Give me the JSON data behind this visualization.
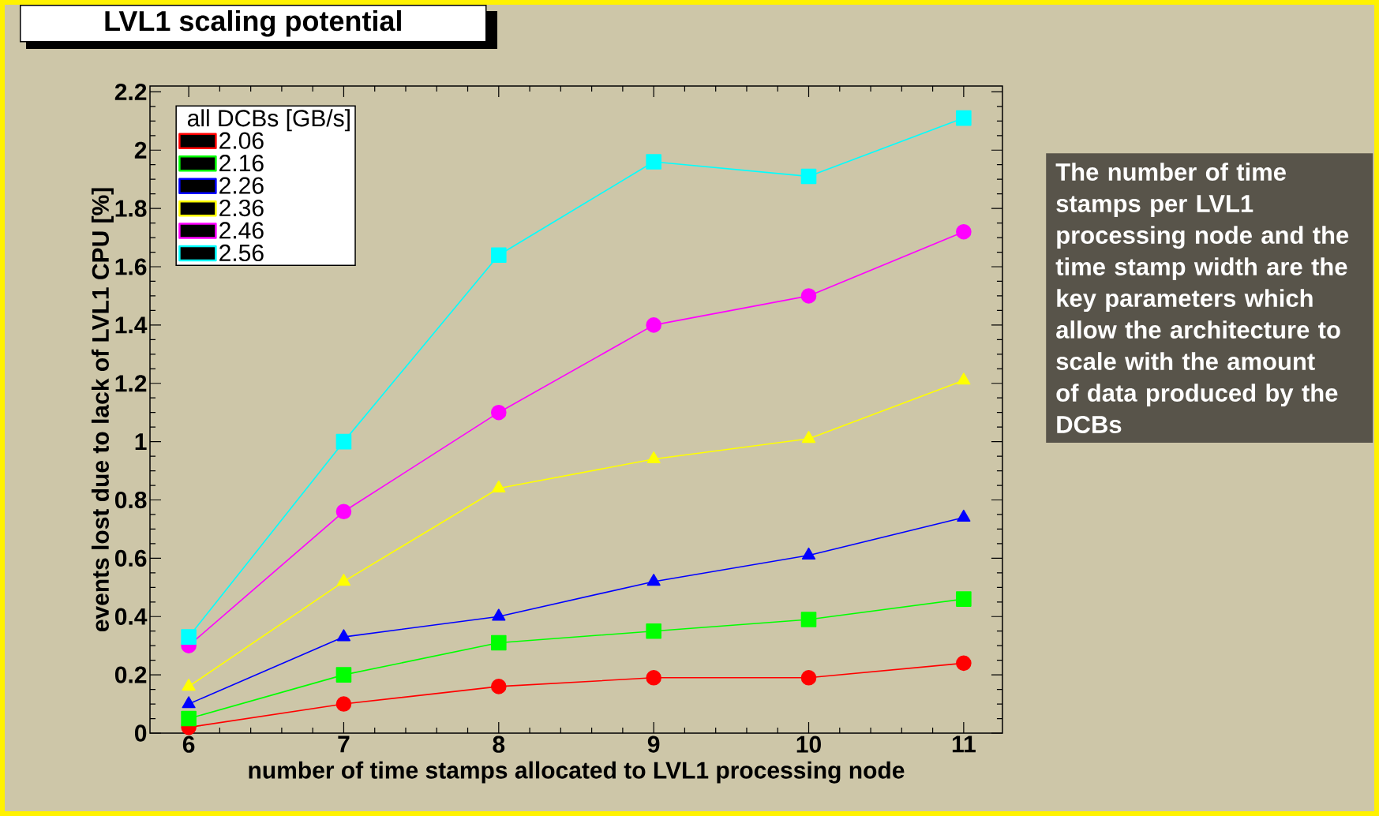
{
  "chart_data": {
    "type": "line",
    "title": "LVL1 scaling potential",
    "xlabel": "number of time stamps allocated to LVL1 processing node",
    "ylabel": "events lost due to lack of LVL1 CPU [%]",
    "legend_title": "all DCBs [GB/s]",
    "legend": "top left",
    "line_style": "solid",
    "x": [
      6,
      7,
      8,
      9,
      10,
      11
    ],
    "xlim": [
      5.75,
      11.25
    ],
    "ylim": [
      0,
      2.22
    ],
    "xticks": [
      6,
      7,
      8,
      9,
      10,
      11
    ],
    "yticks": [
      0,
      0.2,
      0.4,
      0.6,
      0.8,
      {
        "value": 1,
        "label": "1"
      },
      1.2,
      1.4,
      1.6,
      1.8,
      {
        "value": 2,
        "label": "2"
      },
      2.2
    ],
    "series": [
      {
        "name": "2.06",
        "color": "#ff0000",
        "marker": "circle",
        "values": [
          0.02,
          0.1,
          0.16,
          0.19,
          0.19,
          0.24
        ]
      },
      {
        "name": "2.16",
        "color": "#00ff00",
        "marker": "square",
        "values": [
          0.05,
          0.2,
          0.31,
          0.35,
          0.39,
          0.46
        ]
      },
      {
        "name": "2.26",
        "color": "#0000ff",
        "marker": "triangle",
        "values": [
          0.1,
          0.33,
          0.4,
          0.52,
          0.61,
          0.74
        ]
      },
      {
        "name": "2.36",
        "color": "#ffff00",
        "marker": "triangle-down",
        "values": [
          0.16,
          0.52,
          0.84,
          0.94,
          1.01,
          1.21
        ]
      },
      {
        "name": "2.46",
        "color": "#ff00ff",
        "marker": "circle",
        "values": [
          0.3,
          0.76,
          1.1,
          1.4,
          1.5,
          1.72
        ]
      },
      {
        "name": "2.56",
        "color": "#00ffff",
        "marker": "square",
        "values": [
          0.33,
          1.0,
          1.64,
          1.96,
          1.91,
          2.11
        ]
      }
    ],
    "annotations": [
      "The number of time stamps per LVL1 processing node and the time stamp width are the key parameters which allow the architecture to scale with the amount of data produced by the DCBs"
    ]
  }
}
